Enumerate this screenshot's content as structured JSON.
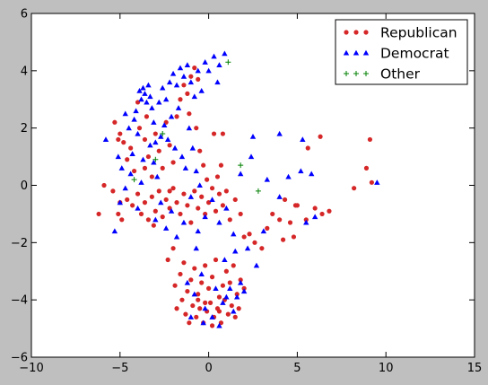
{
  "chart_data": {
    "type": "scatter",
    "title": "",
    "xlabel": "",
    "ylabel": "",
    "xlim": [
      -10,
      15
    ],
    "ylim": [
      -6,
      6
    ],
    "xticks": [
      -10,
      -5,
      0,
      5,
      10,
      15
    ],
    "yticks": [
      -6,
      -4,
      -2,
      0,
      2,
      4,
      6
    ],
    "xtick_labels": [
      "−10",
      "−5",
      "0",
      "5",
      "10",
      "15"
    ],
    "ytick_labels": [
      "−6",
      "−4",
      "−2",
      "0",
      "2",
      "4",
      "6"
    ],
    "grid": false,
    "legend_position": "top-right",
    "series": [
      {
        "name": "Republican",
        "marker": "circle",
        "color": "#d62728",
        "points": [
          [
            -6.2,
            -1.0
          ],
          [
            -5.9,
            0.0
          ],
          [
            -5.4,
            -0.2
          ],
          [
            -5.1,
            -1.0
          ],
          [
            -5.0,
            -0.6
          ],
          [
            -4.9,
            -1.2
          ],
          [
            -4.6,
            -0.5
          ],
          [
            -4.3,
            -0.7
          ],
          [
            -4.0,
            -0.3
          ],
          [
            -3.8,
            -1.0
          ],
          [
            -3.6,
            -0.6
          ],
          [
            -3.4,
            -1.2
          ],
          [
            -3.2,
            -0.4
          ],
          [
            -3.0,
            -0.9
          ],
          [
            -2.8,
            -0.2
          ],
          [
            -2.6,
            -1.1
          ],
          [
            -2.4,
            -0.5
          ],
          [
            -2.2,
            -0.8
          ],
          [
            -2.0,
            -0.1
          ],
          [
            -1.8,
            -0.6
          ],
          [
            -1.6,
            -1.0
          ],
          [
            -1.4,
            -0.3
          ],
          [
            -1.2,
            -0.7
          ],
          [
            -1.0,
            -1.3
          ],
          [
            -0.8,
            -0.2
          ],
          [
            -0.6,
            -0.8
          ],
          [
            -0.4,
            -0.4
          ],
          [
            -0.2,
            -1.0
          ],
          [
            0.0,
            -0.6
          ],
          [
            0.2,
            -0.1
          ],
          [
            0.4,
            -0.9
          ],
          [
            0.6,
            -0.3
          ],
          [
            0.8,
            -0.7
          ],
          [
            1.0,
            -0.2
          ],
          [
            1.2,
            -1.2
          ],
          [
            1.5,
            -0.5
          ],
          [
            1.8,
            -1.0
          ],
          [
            2.0,
            -1.8
          ],
          [
            2.3,
            -1.7
          ],
          [
            2.6,
            -2.0
          ],
          [
            3.0,
            -2.2
          ],
          [
            3.3,
            -1.5
          ],
          [
            3.6,
            -1.0
          ],
          [
            4.0,
            -1.2
          ],
          [
            4.3,
            -0.5
          ],
          [
            4.6,
            -1.3
          ],
          [
            5.0,
            -0.7
          ],
          [
            5.5,
            -1.2
          ],
          [
            6.0,
            -0.8
          ],
          [
            6.4,
            -1.0
          ],
          [
            6.8,
            -0.9
          ],
          [
            4.8,
            -1.8
          ],
          [
            4.2,
            -1.9
          ],
          [
            -5.0,
            1.8
          ],
          [
            -4.8,
            1.5
          ],
          [
            -4.6,
            0.9
          ],
          [
            -4.4,
            1.3
          ],
          [
            -4.2,
            0.5
          ],
          [
            -3.9,
            2.0
          ],
          [
            -3.6,
            1.6
          ],
          [
            -3.4,
            1.0
          ],
          [
            -3.2,
            0.3
          ],
          [
            -3.0,
            1.8
          ],
          [
            -2.8,
            1.2
          ],
          [
            -2.6,
            0.6
          ],
          [
            -2.4,
            2.2
          ],
          [
            -2.2,
            1.4
          ],
          [
            -2.0,
            0.8
          ],
          [
            -1.8,
            2.4
          ],
          [
            -1.6,
            3.0
          ],
          [
            -1.4,
            3.5
          ],
          [
            -1.2,
            3.2
          ],
          [
            -1.0,
            3.8
          ],
          [
            -0.8,
            4.1
          ],
          [
            -0.6,
            3.7
          ],
          [
            -1.1,
            2.5
          ],
          [
            -0.7,
            2.0
          ],
          [
            -0.5,
            1.2
          ],
          [
            -0.3,
            0.7
          ],
          [
            -0.1,
            0.2
          ],
          [
            0.3,
            1.8
          ],
          [
            0.7,
            0.7
          ],
          [
            0.5,
            0.3
          ],
          [
            -5.3,
            2.2
          ],
          [
            -5.1,
            1.6
          ],
          [
            -4.0,
            2.9
          ],
          [
            -3.5,
            2.4
          ],
          [
            -2.3,
            -2.6
          ],
          [
            -2.0,
            -2.2
          ],
          [
            -1.9,
            -3.5
          ],
          [
            -1.6,
            -3.1
          ],
          [
            -1.4,
            -2.7
          ],
          [
            -1.2,
            -3.7
          ],
          [
            -1.0,
            -3.3
          ],
          [
            -0.8,
            -2.9
          ],
          [
            -0.6,
            -3.8
          ],
          [
            -0.4,
            -3.4
          ],
          [
            -0.2,
            -2.8
          ],
          [
            0.0,
            -3.6
          ],
          [
            0.2,
            -3.2
          ],
          [
            0.4,
            -2.6
          ],
          [
            0.6,
            -3.9
          ],
          [
            0.8,
            -3.5
          ],
          [
            1.0,
            -3.0
          ],
          [
            1.2,
            -3.4
          ],
          [
            1.4,
            -2.8
          ],
          [
            1.6,
            -3.8
          ],
          [
            1.8,
            -3.3
          ],
          [
            2.0,
            -3.6
          ],
          [
            -1.8,
            -4.3
          ],
          [
            -1.5,
            -4.0
          ],
          [
            -1.3,
            -4.5
          ],
          [
            -1.1,
            -4.8
          ],
          [
            -0.9,
            -4.2
          ],
          [
            -0.7,
            -4.6
          ],
          [
            -0.5,
            -4.3
          ],
          [
            -0.3,
            -4.8
          ],
          [
            -0.1,
            -4.4
          ],
          [
            0.1,
            -4.1
          ],
          [
            0.3,
            -4.6
          ],
          [
            0.5,
            -4.3
          ],
          [
            0.7,
            -4.8
          ],
          [
            0.9,
            -4.0
          ],
          [
            1.1,
            -4.5
          ],
          [
            1.3,
            -4.2
          ],
          [
            1.5,
            -4.6
          ],
          [
            1.7,
            -4.3
          ],
          [
            -0.2,
            -4.1
          ],
          [
            0.2,
            -4.9
          ],
          [
            -0.6,
            -4.0
          ],
          [
            0.6,
            -4.4
          ],
          [
            8.2,
            -0.1
          ],
          [
            8.9,
            0.6
          ],
          [
            9.1,
            1.6
          ],
          [
            9.2,
            0.1
          ],
          [
            6.3,
            1.7
          ],
          [
            5.6,
            1.3
          ],
          [
            0.8,
            1.8
          ],
          [
            -2.2,
            -0.2
          ],
          [
            -3.1,
            -1.4
          ],
          [
            -3.6,
            0.6
          ],
          [
            4.9,
            -0.7
          ]
        ]
      },
      {
        "name": "Democrat",
        "marker": "triangle",
        "color": "#0000ff",
        "points": [
          [
            -5.8,
            1.6
          ],
          [
            -5.3,
            -1.6
          ],
          [
            -5.1,
            1.0
          ],
          [
            -4.9,
            0.6
          ],
          [
            -4.7,
            2.5
          ],
          [
            -4.5,
            2.0
          ],
          [
            -4.3,
            1.1
          ],
          [
            -4.1,
            2.6
          ],
          [
            -3.9,
            3.3
          ],
          [
            -3.8,
            3.0
          ],
          [
            -3.7,
            3.4
          ],
          [
            -3.6,
            3.2
          ],
          [
            -3.5,
            2.9
          ],
          [
            -3.4,
            3.5
          ],
          [
            -3.3,
            3.1
          ],
          [
            -3.2,
            2.7
          ],
          [
            -3.1,
            2.2
          ],
          [
            -3.0,
            1.5
          ],
          [
            -2.8,
            2.9
          ],
          [
            -2.6,
            3.4
          ],
          [
            -2.4,
            3.0
          ],
          [
            -2.2,
            3.6
          ],
          [
            -2.0,
            3.9
          ],
          [
            -1.8,
            3.5
          ],
          [
            -1.6,
            4.1
          ],
          [
            -1.4,
            3.8
          ],
          [
            -1.2,
            4.2
          ],
          [
            -1.0,
            3.6
          ],
          [
            -0.8,
            3.1
          ],
          [
            -0.6,
            4.0
          ],
          [
            -0.4,
            3.3
          ],
          [
            -0.2,
            4.3
          ],
          [
            0.0,
            4.0
          ],
          [
            0.3,
            4.5
          ],
          [
            0.6,
            4.2
          ],
          [
            0.9,
            4.6
          ],
          [
            0.5,
            3.6
          ],
          [
            -2.5,
            2.1
          ],
          [
            -2.3,
            1.6
          ],
          [
            -2.1,
            2.4
          ],
          [
            -1.9,
            1.3
          ],
          [
            -1.7,
            2.7
          ],
          [
            -1.5,
            1.0
          ],
          [
            -1.3,
            0.6
          ],
          [
            -1.1,
            2.0
          ],
          [
            -0.9,
            1.3
          ],
          [
            -0.7,
            0.5
          ],
          [
            -0.5,
            0.0
          ],
          [
            -3.3,
            1.4
          ],
          [
            -3.1,
            0.8
          ],
          [
            -2.9,
            0.3
          ],
          [
            -2.7,
            1.7
          ],
          [
            -4.0,
            1.8
          ],
          [
            -4.2,
            2.3
          ],
          [
            -3.7,
            0.9
          ],
          [
            -5.0,
            -0.6
          ],
          [
            -4.7,
            -0.1
          ],
          [
            -4.4,
            0.4
          ],
          [
            -4.0,
            -0.8
          ],
          [
            -3.8,
            0.1
          ],
          [
            -3.0,
            -1.2
          ],
          [
            -2.7,
            -0.6
          ],
          [
            -2.4,
            -1.5
          ],
          [
            -2.1,
            -0.9
          ],
          [
            -1.8,
            -1.8
          ],
          [
            -1.4,
            -1.3
          ],
          [
            -1.0,
            -0.4
          ],
          [
            -0.6,
            -1.6
          ],
          [
            -0.2,
            -1.1
          ],
          [
            0.2,
            -0.5
          ],
          [
            0.6,
            -1.3
          ],
          [
            1.0,
            -0.8
          ],
          [
            1.4,
            -1.7
          ],
          [
            1.8,
            0.4
          ],
          [
            2.4,
            1.0
          ],
          [
            2.5,
            1.7
          ],
          [
            3.3,
            0.2
          ],
          [
            4.0,
            -0.4
          ],
          [
            4.5,
            0.3
          ],
          [
            5.2,
            0.5
          ],
          [
            5.5,
            -1.3
          ],
          [
            5.8,
            0.4
          ],
          [
            6.0,
            -1.1
          ],
          [
            4.0,
            1.8
          ],
          [
            5.3,
            1.6
          ],
          [
            9.5,
            0.1
          ],
          [
            3.1,
            -1.6
          ],
          [
            2.2,
            -2.2
          ],
          [
            2.7,
            -2.8
          ],
          [
            1.5,
            -2.3
          ],
          [
            0.9,
            -2.6
          ],
          [
            -0.7,
            -2.2
          ],
          [
            -1.2,
            -3.4
          ],
          [
            -0.4,
            -3.1
          ],
          [
            0.4,
            -3.6
          ],
          [
            1.0,
            -3.9
          ],
          [
            1.4,
            -4.4
          ],
          [
            0.6,
            -4.9
          ],
          [
            0.2,
            -4.6
          ],
          [
            -0.2,
            -4.3
          ],
          [
            -0.8,
            -3.8
          ],
          [
            1.8,
            -3.4
          ],
          [
            2.0,
            -3.7
          ],
          [
            1.6,
            -3.9
          ],
          [
            0.8,
            -4.1
          ],
          [
            -1.0,
            -4.6
          ],
          [
            -0.3,
            -4.8
          ],
          [
            1.2,
            -3.6
          ]
        ]
      },
      {
        "name": "Other",
        "marker": "plus",
        "color": "#008000",
        "points": [
          [
            1.1,
            4.3
          ],
          [
            -2.6,
            1.8
          ],
          [
            -4.2,
            0.2
          ],
          [
            -3.0,
            0.9
          ],
          [
            1.8,
            0.7
          ],
          [
            2.8,
            -0.2
          ]
        ]
      }
    ]
  }
}
